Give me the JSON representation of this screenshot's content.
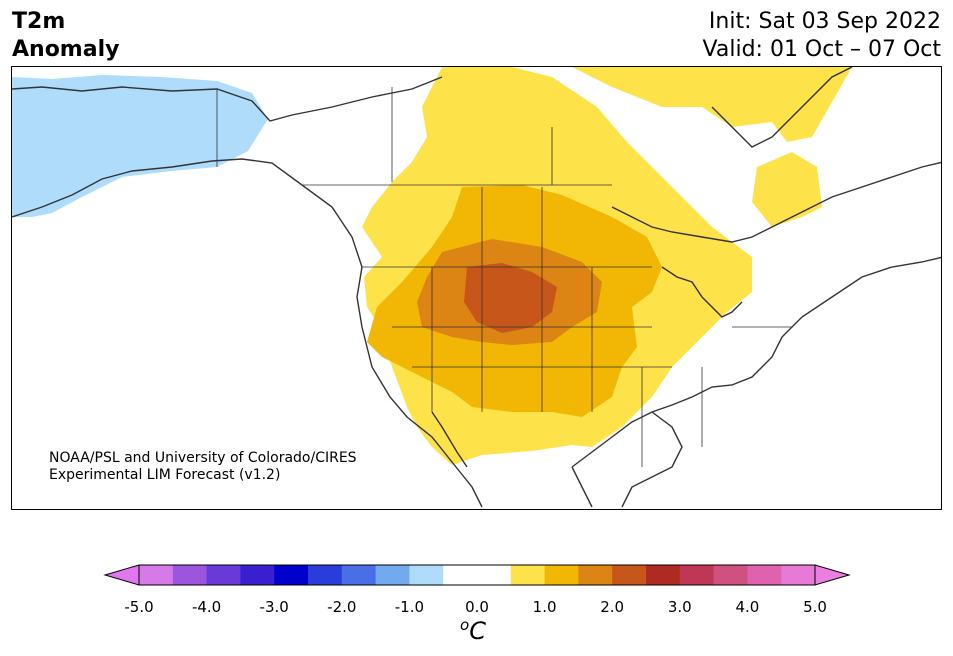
{
  "title": {
    "variable": "T2m",
    "subtitle": "Anomaly",
    "init": "Init: Sat 03 Sep 2022",
    "valid": "Valid: 01 Oct – 07 Oct"
  },
  "credit": {
    "line1": "NOAA/PSL and University of Colorado/CIRES",
    "line2": "Experimental LIM Forecast (v1.2)"
  },
  "colorbar": {
    "unit_base": "C",
    "unit_sup": "o",
    "tick_labels": [
      "-5.0",
      "-4.0",
      "-3.0",
      "-2.0",
      "-1.0",
      "0.0",
      "1.0",
      "2.0",
      "3.0",
      "4.0",
      "5.0"
    ],
    "colors": [
      "#d67ae8",
      "#9e55dd",
      "#6a3ad8",
      "#3a1fd1",
      "#0000cc",
      "#2a3ddb",
      "#4a6ee6",
      "#72aaf0",
      "#aedcfa",
      "#ffffff",
      "#ffffff",
      "#fde24a",
      "#f2b705",
      "#dc8414",
      "#c7561a",
      "#b02a24",
      "#c03755",
      "#d05080",
      "#de62ae",
      "#e67ad6"
    ],
    "extend_low_color": "#e276ee",
    "extend_high_color": "#ec7ee2"
  },
  "map_colors": {
    "neg1": "#aedcfa",
    "pos1": "#fde24a",
    "pos2": "#f2b705",
    "pos3": "#dc8414",
    "pos4": "#c7561a",
    "coast": "#333333"
  }
}
